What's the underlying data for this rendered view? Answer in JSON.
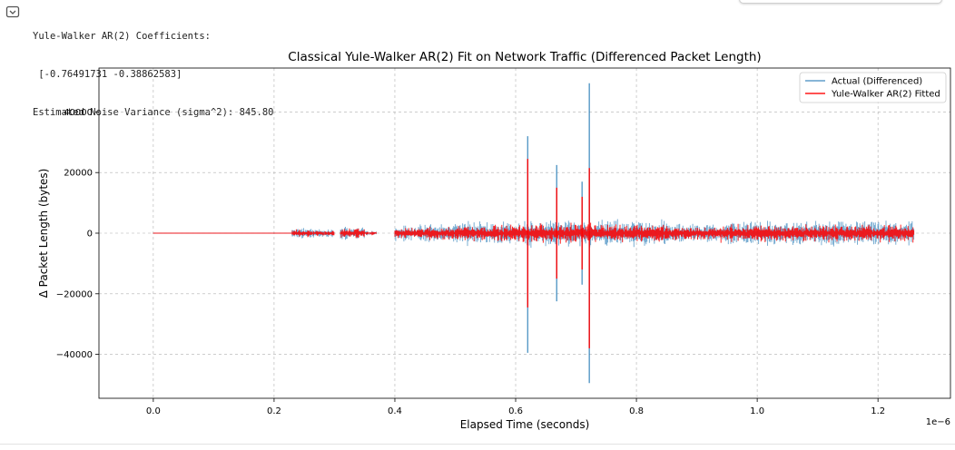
{
  "console": {
    "lines": [
      "Yule-Walker AR(2) Coefficients:",
      " [-0.76491731 -0.38862583]",
      "Estimated Noise Variance (sigma^2): 845.80"
    ]
  },
  "chart_data": {
    "type": "line",
    "title": "Classical Yule-Walker AR(2) Fit on Network Traffic (Differenced Packet Length)",
    "xlabel": "Elapsed Time (seconds)",
    "ylabel": "Δ Packet Length (bytes)",
    "x_offset_text": "1e−6",
    "xlim": [
      -9e-08,
      1.32e-06
    ],
    "ylim": [
      -54500,
      54500
    ],
    "x_ticks": [
      0,
      2e-07,
      4e-07,
      6e-07,
      8e-07,
      1e-06,
      1.2e-06
    ],
    "x_tick_labels": [
      "0.0",
      "0.2",
      "0.4",
      "0.6",
      "0.8",
      "1.0",
      "1.2"
    ],
    "y_ticks": [
      -40000,
      -20000,
      0,
      20000,
      40000
    ],
    "y_tick_labels": [
      "−40000",
      "−20000",
      "0",
      "20000",
      "40000"
    ],
    "grid": true,
    "legend_position": "top-right",
    "series": [
      {
        "name": "Actual (Differenced)",
        "color": "#1f77b4",
        "envelope": [
          {
            "x": [
              0,
              2.3e-07
            ],
            "amp": 150
          },
          {
            "x": [
              2.3e-07,
              2.6e-07
            ],
            "amp": 2000
          },
          {
            "x": [
              2.6e-07,
              3e-07
            ],
            "amp": 1500
          },
          {
            "x": [
              3.1e-07,
              3.5e-07
            ],
            "amp": 2500
          },
          {
            "x": [
              3.5e-07,
              3.7e-07
            ],
            "amp": 1000
          },
          {
            "x": [
              4e-07,
              4.5e-07
            ],
            "amp": 3000
          },
          {
            "x": [
              4.5e-07,
              5e-07
            ],
            "amp": 3500
          },
          {
            "x": [
              5e-07,
              6.2e-07
            ],
            "amp": 4500
          },
          {
            "x": [
              6.2e-07,
              8.5e-07
            ],
            "amp": 5000
          },
          {
            "x": [
              8.5e-07,
              9.4e-07
            ],
            "amp": 3500
          },
          {
            "x": [
              9.4e-07,
              1.26e-06
            ],
            "amp": 4500
          }
        ],
        "spikes": [
          {
            "x": 6.2e-07,
            "min": -39500,
            "max": 32000
          },
          {
            "x": 6.68e-07,
            "min": -22500,
            "max": 22500
          },
          {
            "x": 7.1e-07,
            "min": -17000,
            "max": 17000
          },
          {
            "x": 7.22e-07,
            "min": -49500,
            "max": 49500
          }
        ]
      },
      {
        "name": "Yule-Walker AR(2) Fitted",
        "color": "#ff0000",
        "envelope": [
          {
            "x": [
              0,
              2.3e-07
            ],
            "amp": 100
          },
          {
            "x": [
              2.3e-07,
              2.6e-07
            ],
            "amp": 1400
          },
          {
            "x": [
              2.6e-07,
              3e-07
            ],
            "amp": 1000
          },
          {
            "x": [
              3.1e-07,
              3.5e-07
            ],
            "amp": 1800
          },
          {
            "x": [
              3.5e-07,
              3.7e-07
            ],
            "amp": 700
          },
          {
            "x": [
              4e-07,
              4.5e-07
            ],
            "amp": 2000
          },
          {
            "x": [
              4.5e-07,
              5e-07
            ],
            "amp": 2400
          },
          {
            "x": [
              5e-07,
              6.2e-07
            ],
            "amp": 3200
          },
          {
            "x": [
              6.2e-07,
              8.5e-07
            ],
            "amp": 3600
          },
          {
            "x": [
              8.5e-07,
              9.4e-07
            ],
            "amp": 2500
          },
          {
            "x": [
              9.4e-07,
              1.26e-06
            ],
            "amp": 3200
          }
        ],
        "spikes": [
          {
            "x": 6.2e-07,
            "min": -24500,
            "max": 24500
          },
          {
            "x": 6.68e-07,
            "min": -15000,
            "max": 15000
          },
          {
            "x": 7.1e-07,
            "min": -12000,
            "max": 12000
          },
          {
            "x": 7.22e-07,
            "min": -38000,
            "max": 21500
          }
        ]
      }
    ]
  }
}
